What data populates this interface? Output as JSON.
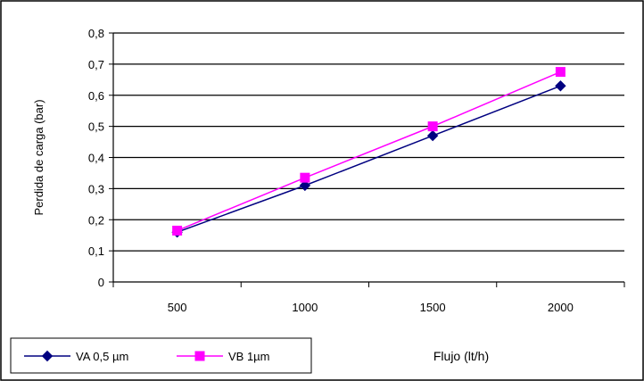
{
  "chart_data": {
    "type": "line",
    "categories": [
      "500",
      "1000",
      "1500",
      "2000"
    ],
    "xlabel": "Flujo (lt/h)",
    "ylabel": "Perdida de carga (bar)",
    "ylim": [
      0,
      0.8
    ],
    "yticks": [
      "0",
      "0,1",
      "0,2",
      "0,3",
      "0,4",
      "0,5",
      "0,6",
      "0,7",
      "0,8"
    ],
    "ystep": 0.1,
    "grid": true,
    "legend_position": "bottom-left",
    "series": [
      {
        "name": "VA 0,5 µm",
        "values": [
          0.16,
          0.31,
          0.47,
          0.63
        ],
        "color": "#000080",
        "marker": "diamond"
      },
      {
        "name": "VB 1µm",
        "values": [
          0.165,
          0.335,
          0.5,
          0.675
        ],
        "color": "#ff00ff",
        "marker": "square"
      }
    ]
  }
}
